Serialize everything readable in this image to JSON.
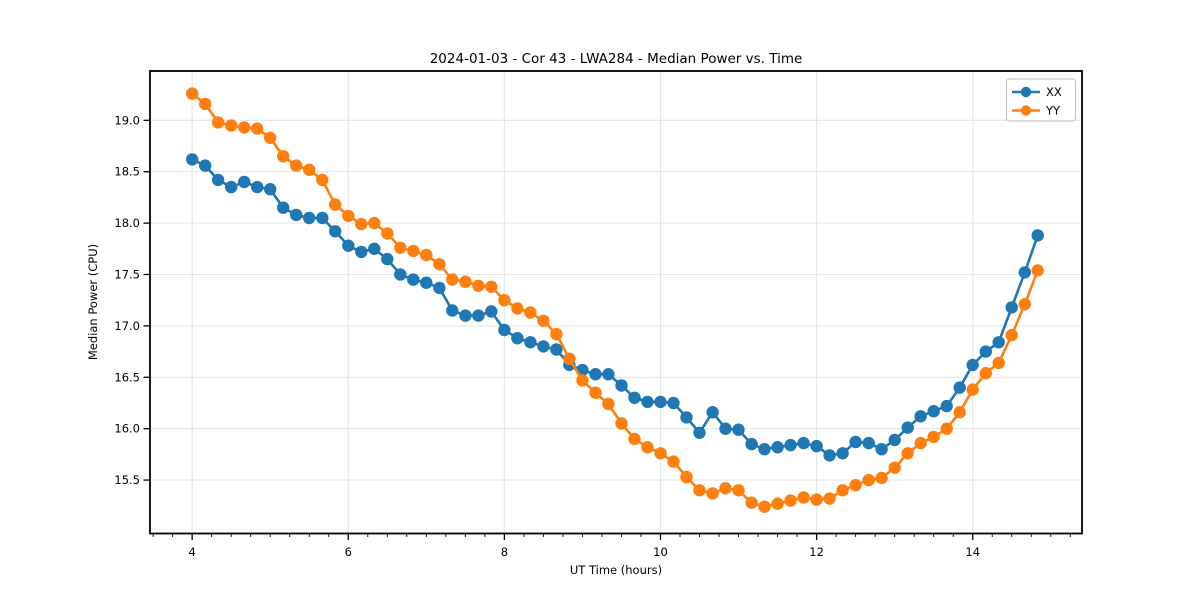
{
  "title": "2024-01-03 - Cor 43 - LWA284 - Median Power vs. Time",
  "axes": {
    "xlabel": "UT Time (hours)",
    "ylabel": "Median Power (CPU)",
    "xlim": [
      3.46,
      15.4
    ],
    "ylim": [
      14.98,
      19.48
    ],
    "x_ticks": {
      "values": [
        4,
        6,
        8,
        10,
        12,
        14
      ],
      "labels": [
        "4",
        "6",
        "8",
        "10",
        "12",
        "14"
      ],
      "minor_step": 0.25
    },
    "y_ticks": {
      "values": [
        15.5,
        16.0,
        16.5,
        17.0,
        17.5,
        18.0,
        18.5,
        19.0
      ],
      "labels": [
        "15.5",
        "16.0",
        "16.5",
        "17.0",
        "17.5",
        "18.0",
        "18.5",
        "19.0"
      ]
    },
    "grid": true,
    "grid_color": "#e6e6e6",
    "spine_color": "#000000"
  },
  "legend": {
    "position": "upper right",
    "items": [
      {
        "label": "XX",
        "color": "#1f77b4"
      },
      {
        "label": "YY",
        "color": "#ff7f0e"
      }
    ]
  },
  "chart_data": {
    "type": "line",
    "title": "2024-01-03 - Cor 43 - LWA284 - Median Power vs. Time",
    "xlabel": "UT Time (hours)",
    "ylabel": "Median Power (CPU)",
    "xlim": [
      3.46,
      15.4
    ],
    "ylim": [
      14.98,
      19.48
    ],
    "grid": true,
    "legend_position": "upper right",
    "x": [
      4.0,
      4.167,
      4.333,
      4.5,
      4.667,
      4.833,
      5.0,
      5.167,
      5.333,
      5.5,
      5.667,
      5.833,
      6.0,
      6.167,
      6.333,
      6.5,
      6.667,
      6.833,
      7.0,
      7.167,
      7.333,
      7.5,
      7.667,
      7.833,
      8.0,
      8.167,
      8.333,
      8.5,
      8.667,
      8.833,
      9.0,
      9.167,
      9.333,
      9.5,
      9.667,
      9.833,
      10.0,
      10.167,
      10.333,
      10.5,
      10.667,
      10.833,
      11.0,
      11.167,
      11.333,
      11.5,
      11.667,
      11.833,
      12.0,
      12.167,
      12.333,
      12.5,
      12.667,
      12.833,
      13.0,
      13.167,
      13.333,
      13.5,
      13.667,
      13.833,
      14.0,
      14.167,
      14.333,
      14.5,
      14.667,
      14.833
    ],
    "series": [
      {
        "name": "XX",
        "color": "#1f77b4",
        "marker": "circle",
        "values": [
          18.62,
          18.56,
          18.42,
          18.35,
          18.4,
          18.35,
          18.33,
          18.15,
          18.08,
          18.05,
          18.05,
          17.92,
          17.78,
          17.72,
          17.75,
          17.65,
          17.5,
          17.45,
          17.42,
          17.37,
          17.15,
          17.1,
          17.1,
          17.14,
          16.96,
          16.88,
          16.84,
          16.8,
          16.77,
          16.62,
          16.57,
          16.53,
          16.53,
          16.42,
          16.3,
          16.26,
          16.26,
          16.25,
          16.11,
          15.96,
          16.16,
          16.0,
          15.99,
          15.85,
          15.8,
          15.82,
          15.84,
          15.86,
          15.83,
          15.74,
          15.76,
          15.87,
          15.86,
          15.8,
          15.89,
          16.01,
          16.12,
          16.17,
          16.22,
          16.4,
          16.62,
          16.75,
          16.84,
          17.18,
          17.52,
          17.88
        ]
      },
      {
        "name": "YY",
        "color": "#ff7f0e",
        "marker": "circle",
        "values": [
          19.26,
          19.16,
          18.98,
          18.95,
          18.93,
          18.92,
          18.83,
          18.65,
          18.56,
          18.52,
          18.42,
          18.18,
          18.07,
          17.99,
          18.0,
          17.9,
          17.76,
          17.73,
          17.69,
          17.6,
          17.45,
          17.43,
          17.39,
          17.38,
          17.25,
          17.17,
          17.13,
          17.05,
          16.92,
          16.68,
          16.47,
          16.35,
          16.24,
          16.05,
          15.9,
          15.82,
          15.76,
          15.68,
          15.53,
          15.4,
          15.37,
          15.42,
          15.4,
          15.28,
          15.24,
          15.27,
          15.3,
          15.33,
          15.31,
          15.32,
          15.4,
          15.45,
          15.5,
          15.52,
          15.62,
          15.76,
          15.86,
          15.92,
          16.0,
          16.16,
          16.38,
          16.54,
          16.64,
          16.91,
          17.21,
          17.54
        ]
      }
    ]
  }
}
